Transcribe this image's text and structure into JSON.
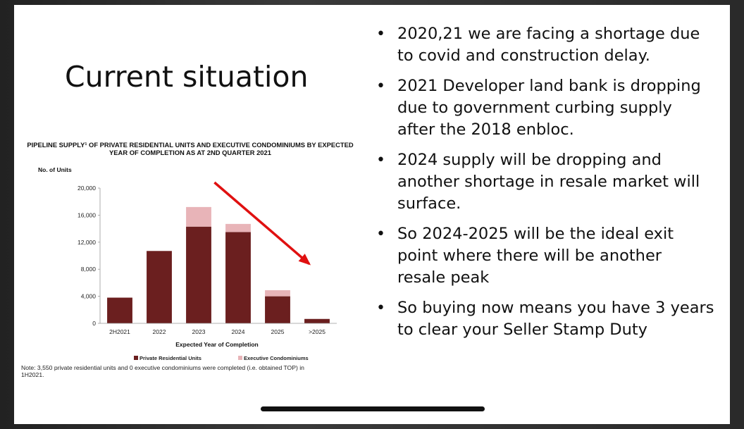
{
  "slide": {
    "title": "Current situation",
    "bullets": [
      "2020,21 we are facing a shortage due to covid and construction delay.",
      "2021 Developer land bank is dropping due to government curbing supply after the 2018 enbloc.",
      "2024 supply will be dropping and another shortage in resale market will surface.",
      "So 2024-2025 will be the ideal exit point where there will be another resale peak",
      "So buying now means you have 3 years to clear your Seller Stamp Duty"
    ]
  },
  "chart_data": {
    "type": "bar",
    "stacked": true,
    "title": "PIPELINE SUPPLY¹ OF PRIVATE RESIDENTIAL UNITS AND EXECUTIVE CONDOMINIUMS BY EXPECTED YEAR OF COMPLETION AS AT 2ND QUARTER 2021",
    "ylabel": "No. of Units",
    "xlabel": "Expected Year of Completion",
    "categories": [
      "2H2021",
      "2022",
      "2023",
      "2024",
      "2025",
      ">2025"
    ],
    "series": [
      {
        "name": "Private Residential Units",
        "values": [
          3800,
          10700,
          14300,
          13500,
          4000,
          650
        ],
        "color": "#6b1f1f"
      },
      {
        "name": "Executive Condominiums",
        "values": [
          0,
          0,
          2900,
          1200,
          900,
          0
        ],
        "color": "#e8b4b8"
      }
    ],
    "yticks": [
      "20,000",
      "16,000",
      "12,000",
      "8,000",
      "4,000",
      "0"
    ],
    "ylim": [
      0,
      20000
    ],
    "legend_position": "bottom",
    "annotation": {
      "type": "arrow",
      "color": "#e01010",
      "direction": "down-right",
      "from_category": "2024",
      "to_category": ">2025"
    },
    "note": "Note: 3,550 private residential units and 0 executive condominiums were completed (i.e. obtained TOP) in 1H2021."
  }
}
